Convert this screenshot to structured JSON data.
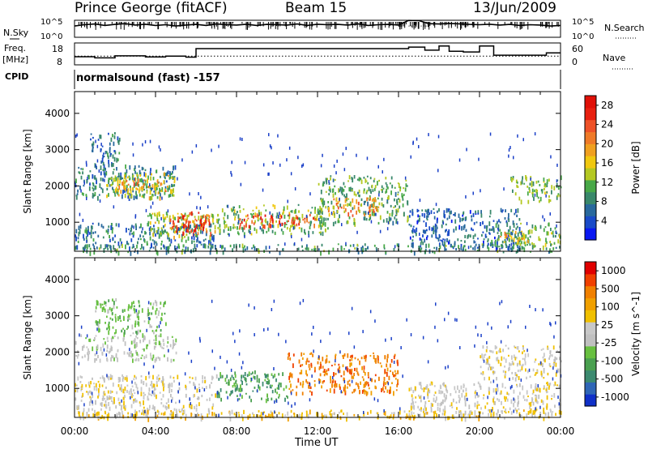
{
  "header": {
    "title": "Prince George (fitACF)",
    "beam": "Beam 15",
    "date": "13/Jun/2009"
  },
  "cpid": {
    "label": "CPID",
    "value": "normalsound (fast) -157"
  },
  "time_axis_label": "Time UT",
  "chart_data": [
    {
      "type": "line",
      "title": "",
      "left_label": "N.Sky",
      "right_label": "N.Search",
      "left_ticks": [
        "10^5",
        "10^0"
      ],
      "right_ticks": [
        "10^5",
        "10^0"
      ],
      "yscale": "log",
      "ylim": [
        1,
        100000
      ],
      "xlim": [
        0,
        24
      ],
      "series": [
        {
          "name": "N.Sky",
          "style": "solid",
          "x": [
            0,
            0.5,
            1,
            1.5,
            2,
            2.5,
            3,
            3.5,
            4,
            4.5,
            5,
            5.5,
            6,
            6.5,
            7,
            7.5,
            8,
            8.5,
            9,
            9.5,
            10,
            10.5,
            11,
            11.5,
            12,
            12.5,
            13,
            13.5,
            14,
            14.5,
            15,
            15.5,
            16,
            16.5,
            17,
            17.5,
            18,
            18.5,
            19,
            19.5,
            20,
            20.5,
            21,
            21.5,
            22,
            22.5,
            23,
            23.5,
            24
          ],
          "values": [
            2000,
            5000,
            8000,
            3000,
            6000,
            10000,
            4000,
            7000,
            3000,
            5000,
            2000,
            4000,
            6000,
            3000,
            8000,
            5000,
            4000,
            7000,
            3000,
            6000,
            5000,
            4000,
            8000,
            3000,
            7000,
            5000,
            6000,
            4000,
            9000,
            3000,
            5000,
            6000,
            4000,
            90000,
            80000,
            10000,
            8000,
            12000,
            9000,
            6000,
            5000,
            7000,
            4000,
            6000,
            3000,
            5000,
            4000,
            2000,
            3000
          ]
        },
        {
          "name": "N.Search",
          "style": "dotted",
          "x": [
            16.5,
            17.5
          ],
          "values": [
            2000,
            2000
          ]
        }
      ]
    },
    {
      "type": "line",
      "title": "",
      "left_label": "Freq. [MHz]",
      "right_label": "Nave",
      "left_ticks": [
        18,
        8
      ],
      "right_ticks": [
        60,
        0
      ],
      "ylim": [
        8,
        18
      ],
      "xlim": [
        0,
        24
      ],
      "series": [
        {
          "name": "Freq.",
          "style": "solid",
          "x": [
            0,
            1,
            1,
            2,
            2,
            3.5,
            3.5,
            4.5,
            4.5,
            5.5,
            5.5,
            6,
            6,
            16.5,
            16.5,
            17.3,
            17.3,
            18,
            18,
            18.5,
            18.5,
            19.2,
            19.2,
            20,
            20,
            20.7,
            20.7,
            23.3,
            23.3,
            24
          ],
          "values": [
            11.7,
            11.7,
            11.2,
            11.2,
            12.1,
            12.1,
            11.6,
            11.6,
            12,
            12,
            11.5,
            11.5,
            15.4,
            15.4,
            16.1,
            16.1,
            14.7,
            14.7,
            16.6,
            16.6,
            14.2,
            14.2,
            13.9,
            13.9,
            16.6,
            16.6,
            12.4,
            12.4,
            13.5,
            13.5
          ]
        },
        {
          "name": "Nave",
          "style": "dotted",
          "x": [
            0,
            24
          ],
          "values": [
            24,
            24
          ]
        }
      ]
    },
    {
      "type": "heatmap",
      "title": "",
      "ylabel": "Slant Range [km]",
      "xlabel": "Time UT",
      "xlim": [
        0,
        24
      ],
      "ylim": [
        200,
        4600
      ],
      "x_ticks": [
        "00:00",
        "04:00",
        "08:00",
        "12:00",
        "16:00",
        "20:00",
        "00:00"
      ],
      "y_ticks": [
        1000,
        2000,
        3000,
        4000
      ],
      "colorbar": {
        "label": "Power [dB]",
        "ticks": [
          4,
          8,
          12,
          16,
          20,
          24,
          28
        ],
        "range": [
          0,
          30
        ],
        "colors": [
          "#0a18f2",
          "#1a4bc8",
          "#29699d",
          "#39886b",
          "#48a848",
          "#b4c822",
          "#f0c810",
          "#f0a020",
          "#ef7a28",
          "#ee5228",
          "#e82010",
          "#e01008"
        ]
      },
      "bands": [
        {
          "t": [
            0.0,
            5.0
          ],
          "r": [
            1700,
            2600
          ],
          "v": 8
        },
        {
          "t": [
            0.7,
            2.2
          ],
          "r": [
            2600,
            3500
          ],
          "v": 7
        },
        {
          "t": [
            1.5,
            5.0
          ],
          "r": [
            1700,
            2400
          ],
          "v": 14
        },
        {
          "t": [
            2.0,
            4.5
          ],
          "r": [
            1850,
            2200
          ],
          "v": 20
        },
        {
          "t": [
            0.0,
            7.0
          ],
          "r": [
            300,
            1000
          ],
          "v": 7
        },
        {
          "t": [
            3.5,
            7.0
          ],
          "r": [
            600,
            1300
          ],
          "v": 14
        },
        {
          "t": [
            4.7,
            6.7
          ],
          "r": [
            700,
            1300
          ],
          "v": 22
        },
        {
          "t": [
            5.0,
            6.5
          ],
          "r": [
            850,
            1200
          ],
          "v": 27
        },
        {
          "t": [
            7.0,
            12.5
          ],
          "r": [
            700,
            1500
          ],
          "v": 12
        },
        {
          "t": [
            8.0,
            12.0
          ],
          "r": [
            900,
            1250
          ],
          "v": 24
        },
        {
          "t": [
            12.0,
            16.5
          ],
          "r": [
            1000,
            2300
          ],
          "v": 11
        },
        {
          "t": [
            12.5,
            15.0
          ],
          "r": [
            1200,
            1700
          ],
          "v": 20
        },
        {
          "t": [
            16.5,
            22.0
          ],
          "r": [
            300,
            1400
          ],
          "v": 6
        },
        {
          "t": [
            20.5,
            24.0
          ],
          "r": [
            400,
            1000
          ],
          "v": 12
        },
        {
          "t": [
            21.0,
            22.5
          ],
          "r": [
            450,
            800
          ],
          "v": 18
        },
        {
          "t": [
            21.5,
            24.0
          ],
          "r": [
            1600,
            2300
          ],
          "v": 12
        },
        {
          "t": [
            0.0,
            24.0
          ],
          "r": [
            200,
            420
          ],
          "v": 9
        }
      ]
    },
    {
      "type": "heatmap",
      "title": "",
      "ylabel": "Slant Range [km]",
      "xlabel": "Time UT",
      "xlim": [
        0,
        24
      ],
      "ylim": [
        200,
        4600
      ],
      "x_ticks": [
        "00:00",
        "04:00",
        "08:00",
        "12:00",
        "16:00",
        "20:00",
        "00:00"
      ],
      "y_ticks": [
        1000,
        2000,
        3000,
        4000
      ],
      "colorbar": {
        "label": "Velocity [m s^-1]",
        "ticks": [
          "1000",
          "500",
          "100",
          "25",
          "-25",
          "-100",
          "-500",
          "-1000"
        ],
        "colors": [
          "#1030c8",
          "#2f66b6",
          "#3c8a70",
          "#4aa050",
          "#68c040",
          "#c0c0c0",
          "#c8c8c8",
          "#f0c000",
          "#f0a000",
          "#f08000",
          "#f04000",
          "#e00000"
        ]
      },
      "bands": [
        {
          "t": [
            0.0,
            5.0
          ],
          "r": [
            1800,
            2500
          ],
          "c": 5
        },
        {
          "t": [
            1.0,
            4.5
          ],
          "r": [
            2500,
            3500
          ],
          "c": 4
        },
        {
          "t": [
            0.0,
            7.0
          ],
          "r": [
            300,
            1400
          ],
          "c": 6
        },
        {
          "t": [
            7.0,
            10.5
          ],
          "r": [
            700,
            1500
          ],
          "c": 3
        },
        {
          "t": [
            10.5,
            16.0
          ],
          "r": [
            900,
            2000
          ],
          "c": 9
        },
        {
          "t": [
            16.5,
            24.0
          ],
          "r": [
            300,
            1200
          ],
          "c": 6
        },
        {
          "t": [
            20.0,
            24.0
          ],
          "r": [
            1300,
            2200
          ],
          "c": 6
        },
        {
          "t": [
            0.0,
            24.0
          ],
          "r": [
            200,
            420
          ],
          "c": 7
        }
      ]
    }
  ]
}
